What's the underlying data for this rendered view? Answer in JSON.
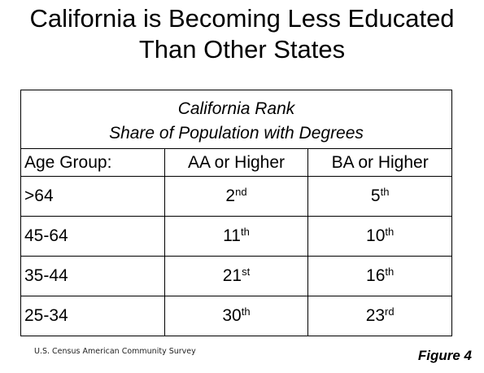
{
  "title": {
    "line1": "California is Becoming Less Educated",
    "line2": "Than Other States"
  },
  "table": {
    "caption_line1": "California Rank",
    "caption_line2": "Share of Population with Degrees",
    "headers": [
      "Age Group:",
      "AA or Higher",
      "BA or Higher"
    ],
    "rows": [
      {
        "age": ">64",
        "aa": "2",
        "aa_suffix": "nd",
        "ba": "5",
        "ba_suffix": "th"
      },
      {
        "age": "45-64",
        "aa": "11",
        "aa_suffix": "th",
        "ba": "10",
        "ba_suffix": "th"
      },
      {
        "age": "35-44",
        "aa": "21",
        "aa_suffix": "st",
        "ba": "16",
        "ba_suffix": "th"
      },
      {
        "age": "25-34",
        "aa": "30",
        "aa_suffix": "th",
        "ba": "23",
        "ba_suffix": "rd"
      }
    ]
  },
  "source": "U.S. Census American Community Survey",
  "figure_label": "Figure 4"
}
